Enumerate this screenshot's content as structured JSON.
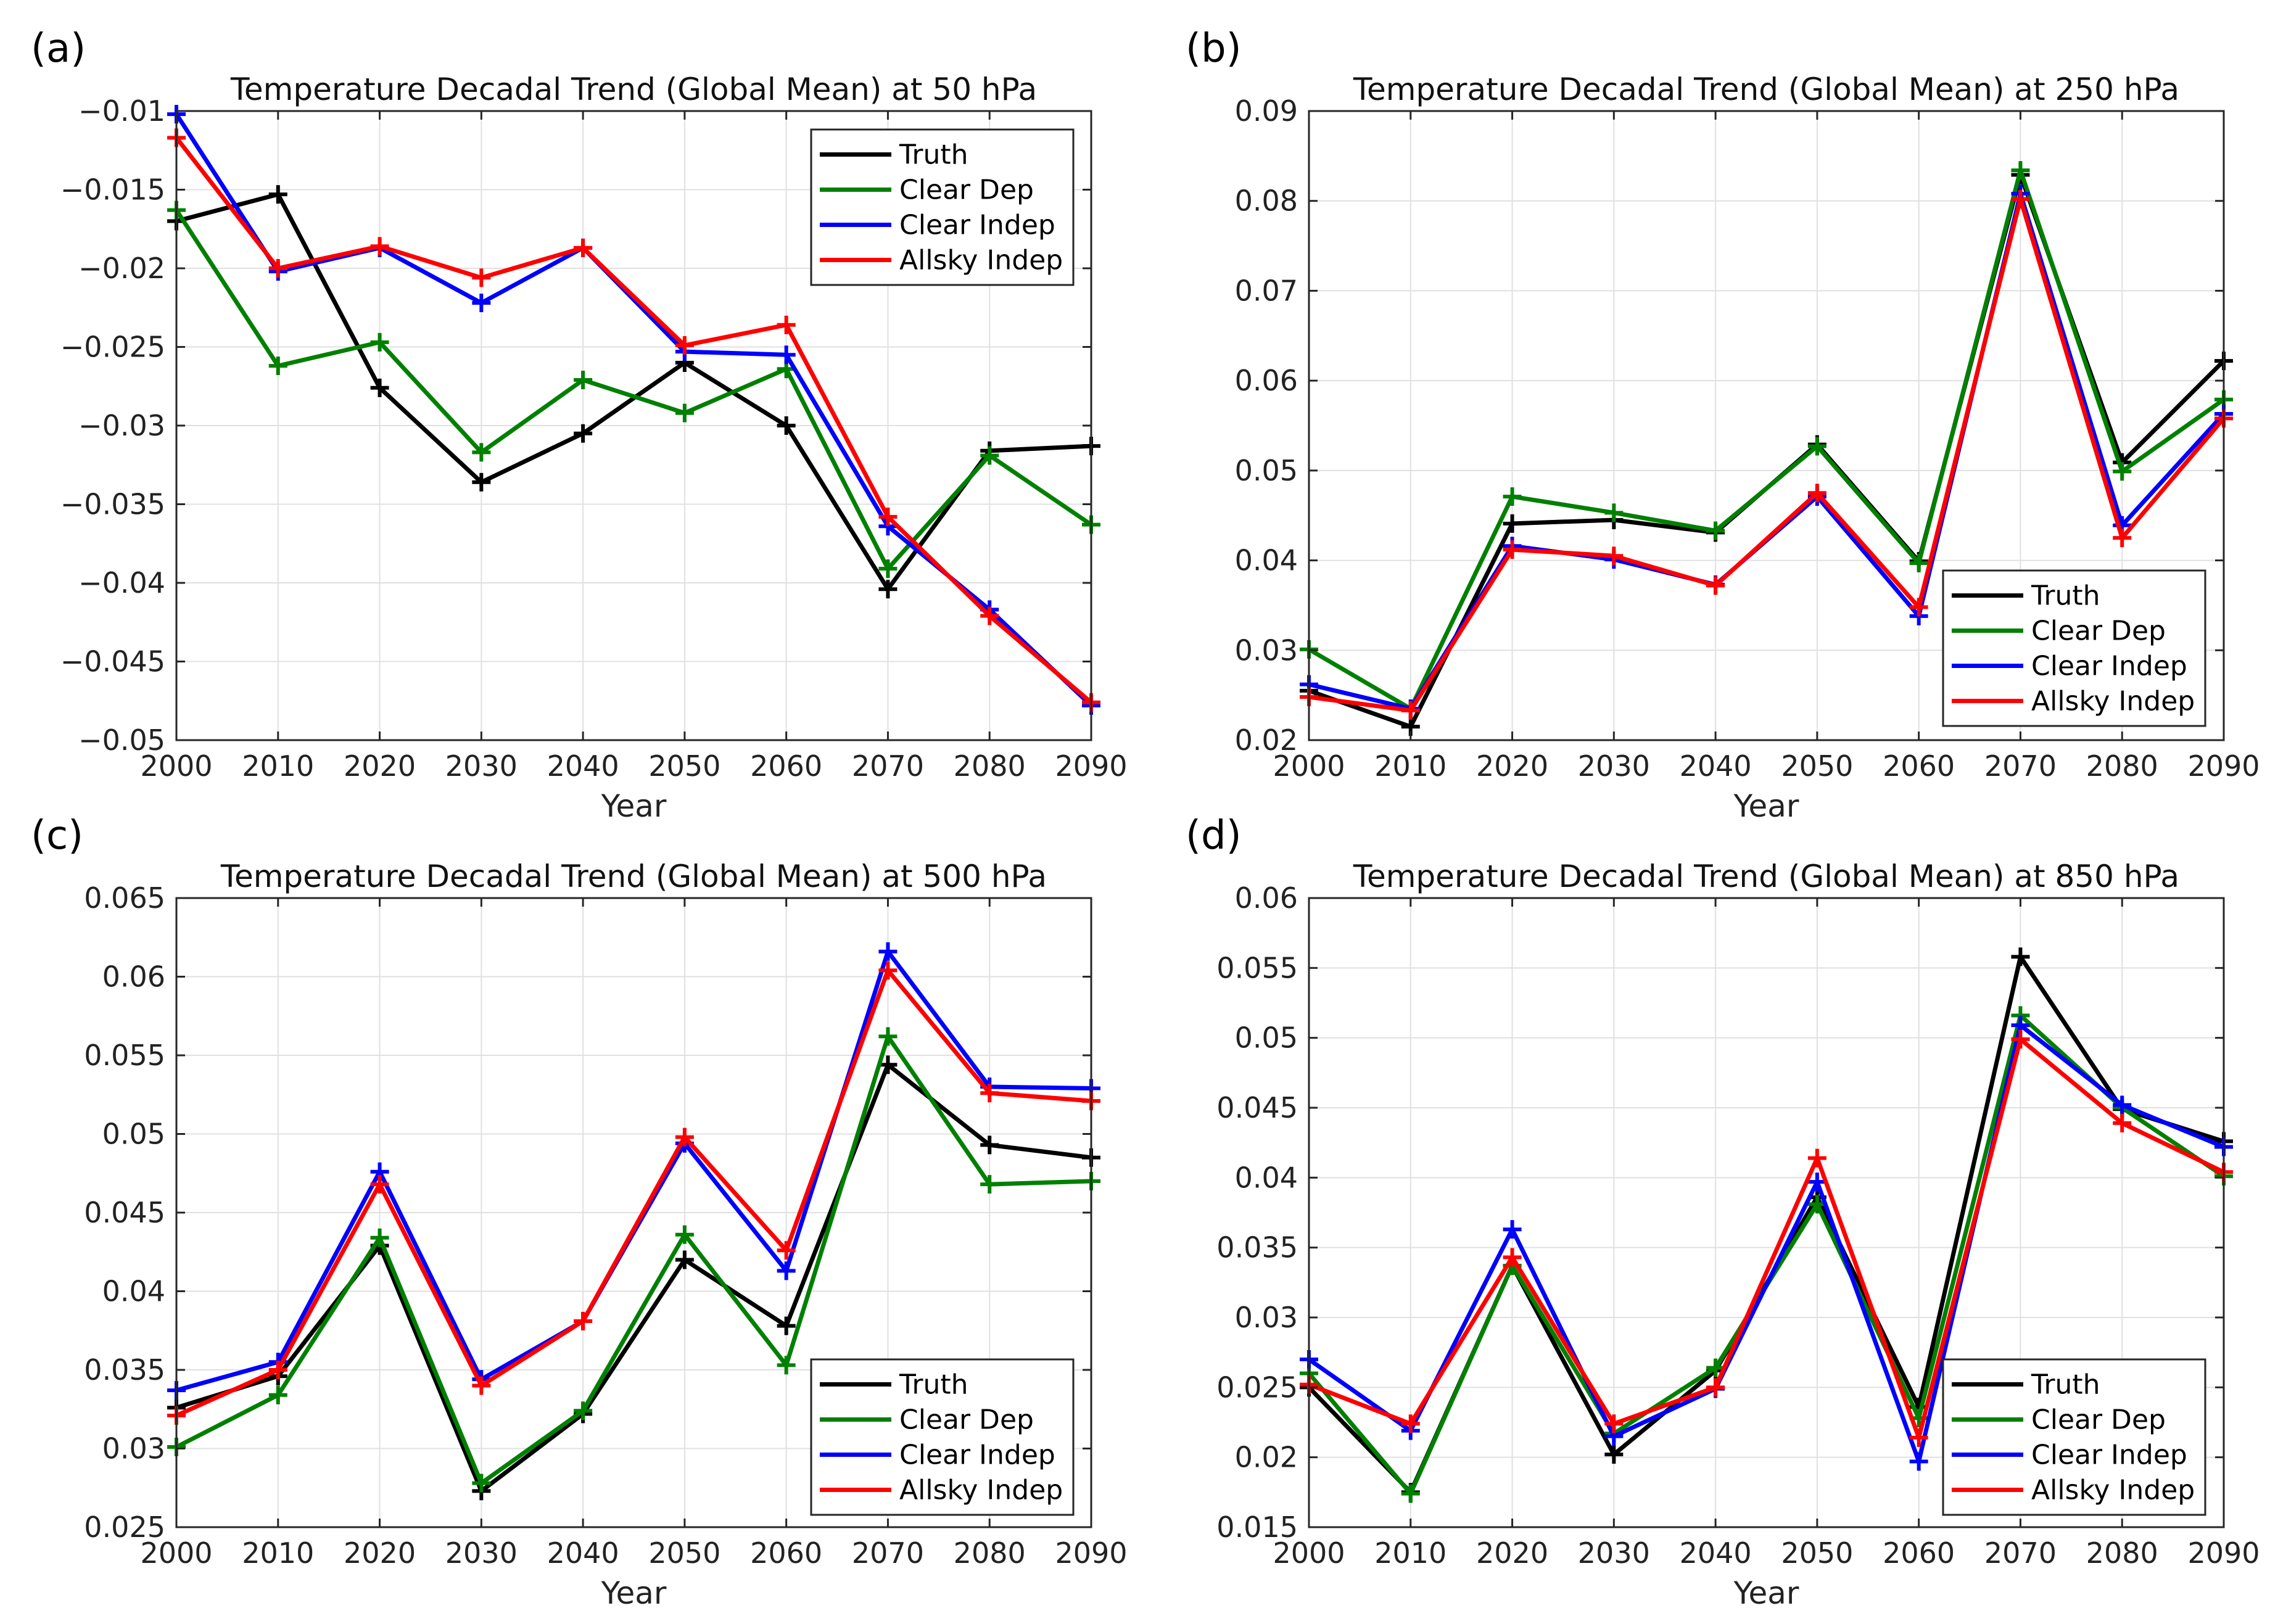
{
  "figure": {
    "background": "#ffffff"
  },
  "colors": {
    "Truth": "#000000",
    "Clear Dep": "#008000",
    "Clear Indep": "#0000ff",
    "Allsky Indep": "#ff0000"
  },
  "chart_data": [
    {
      "type": "line",
      "panel_label": "(a)",
      "title": "Temperature Decadal Trend (Global Mean) at 50 hPa",
      "xlabel": "Year",
      "ylabel": "",
      "x": [
        2000,
        2010,
        2020,
        2030,
        2040,
        2050,
        2060,
        2070,
        2080,
        2090
      ],
      "x_tick_labels": [
        "2000",
        "2010",
        "2020",
        "2030",
        "2040",
        "2050",
        "2060",
        "2070",
        "2080",
        "2090"
      ],
      "ylim": [
        -0.05,
        -0.01
      ],
      "y_ticks": [
        -0.05,
        -0.045,
        -0.04,
        -0.035,
        -0.03,
        -0.025,
        -0.02,
        -0.015,
        -0.01
      ],
      "y_tick_labels": [
        "−0.05",
        "−0.045",
        "−0.04",
        "−0.035",
        "−0.03",
        "−0.025",
        "−0.02",
        "−0.015",
        "−0.01"
      ],
      "grid": true,
      "legend_position": "top-right",
      "series": [
        {
          "name": "Truth",
          "color": "#000000",
          "values": [
            -0.017,
            -0.0153,
            -0.0276,
            -0.0336,
            -0.0305,
            -0.026,
            -0.03,
            -0.0404,
            -0.0316,
            -0.0313
          ]
        },
        {
          "name": "Clear Dep",
          "color": "#008000",
          "values": [
            -0.0163,
            -0.0262,
            -0.0247,
            -0.0317,
            -0.0271,
            -0.0292,
            -0.0264,
            -0.0391,
            -0.0319,
            -0.0363
          ]
        },
        {
          "name": "Clear Indep",
          "color": "#0000ff",
          "values": [
            -0.0102,
            -0.0202,
            -0.0187,
            -0.0222,
            -0.0187,
            -0.0253,
            -0.0255,
            -0.0364,
            -0.0417,
            -0.0478
          ]
        },
        {
          "name": "Allsky Indep",
          "color": "#ff0000",
          "values": [
            -0.0117,
            -0.02,
            -0.0186,
            -0.0206,
            -0.0187,
            -0.0249,
            -0.0236,
            -0.0358,
            -0.0421,
            -0.0476
          ]
        }
      ]
    },
    {
      "type": "line",
      "panel_label": "(b)",
      "title": "Temperature Decadal Trend (Global Mean) at 250 hPa",
      "xlabel": "Year",
      "ylabel": "",
      "x": [
        2000,
        2010,
        2020,
        2030,
        2040,
        2050,
        2060,
        2070,
        2080,
        2090
      ],
      "x_tick_labels": [
        "2000",
        "2010",
        "2020",
        "2030",
        "2040",
        "2050",
        "2060",
        "2070",
        "2080",
        "2090"
      ],
      "ylim": [
        0.02,
        0.09
      ],
      "y_ticks": [
        0.02,
        0.03,
        0.04,
        0.05,
        0.06,
        0.07,
        0.08,
        0.09
      ],
      "y_tick_labels": [
        "0.02",
        "0.03",
        "0.04",
        "0.05",
        "0.06",
        "0.07",
        "0.08",
        "0.09"
      ],
      "grid": true,
      "legend_position": "bottom-right",
      "series": [
        {
          "name": "Truth",
          "color": "#000000",
          "values": [
            0.0255,
            0.0215,
            0.0441,
            0.0445,
            0.0431,
            0.0529,
            0.0399,
            0.0829,
            0.0509,
            0.0622
          ]
        },
        {
          "name": "Clear Dep",
          "color": "#008000",
          "values": [
            0.0301,
            0.0235,
            0.0471,
            0.0453,
            0.0433,
            0.0527,
            0.0397,
            0.0834,
            0.0499,
            0.0579
          ]
        },
        {
          "name": "Clear Indep",
          "color": "#0000ff",
          "values": [
            0.0262,
            0.0235,
            0.0416,
            0.0401,
            0.0373,
            0.0471,
            0.0338,
            0.0808,
            0.0439,
            0.0563
          ]
        },
        {
          "name": "Allsky Indep",
          "color": "#ff0000",
          "values": [
            0.0248,
            0.0233,
            0.0412,
            0.0405,
            0.0372,
            0.0475,
            0.0348,
            0.0802,
            0.0425,
            0.0558
          ]
        }
      ]
    },
    {
      "type": "line",
      "panel_label": "(c)",
      "title": "Temperature Decadal Trend (Global Mean) at 500 hPa",
      "xlabel": "Year",
      "ylabel": "",
      "x": [
        2000,
        2010,
        2020,
        2030,
        2040,
        2050,
        2060,
        2070,
        2080,
        2090
      ],
      "x_tick_labels": [
        "2000",
        "2010",
        "2020",
        "2030",
        "2040",
        "2050",
        "2060",
        "2070",
        "2080",
        "2090"
      ],
      "ylim": [
        0.025,
        0.065
      ],
      "y_ticks": [
        0.025,
        0.03,
        0.035,
        0.04,
        0.045,
        0.05,
        0.055,
        0.06,
        0.065
      ],
      "y_tick_labels": [
        "0.025",
        "0.03",
        "0.035",
        "0.04",
        "0.045",
        "0.05",
        "0.055",
        "0.06",
        "0.065"
      ],
      "grid": true,
      "legend_position": "bottom-right",
      "series": [
        {
          "name": "Truth",
          "color": "#000000",
          "values": [
            0.0326,
            0.0346,
            0.0429,
            0.0273,
            0.0322,
            0.042,
            0.0378,
            0.0544,
            0.0493,
            0.0485
          ]
        },
        {
          "name": "Clear Dep",
          "color": "#008000",
          "values": [
            0.0301,
            0.0334,
            0.0434,
            0.0278,
            0.0324,
            0.0436,
            0.0353,
            0.0562,
            0.0468,
            0.047
          ]
        },
        {
          "name": "Clear Indep",
          "color": "#0000ff",
          "values": [
            0.0337,
            0.0355,
            0.0476,
            0.0344,
            0.0381,
            0.0494,
            0.0413,
            0.0616,
            0.053,
            0.0529
          ]
        },
        {
          "name": "Allsky Indep",
          "color": "#ff0000",
          "values": [
            0.0321,
            0.035,
            0.0468,
            0.034,
            0.0381,
            0.0498,
            0.0426,
            0.0604,
            0.0526,
            0.0521
          ]
        }
      ]
    },
    {
      "type": "line",
      "panel_label": "(d)",
      "title": "Temperature Decadal Trend (Global Mean) at 850 hPa",
      "xlabel": "Year",
      "ylabel": "",
      "x": [
        2000,
        2010,
        2020,
        2030,
        2040,
        2050,
        2060,
        2070,
        2080,
        2090
      ],
      "x_tick_labels": [
        "2000",
        "2010",
        "2020",
        "2030",
        "2040",
        "2050",
        "2060",
        "2070",
        "2080",
        "2090"
      ],
      "ylim": [
        0.015,
        0.06
      ],
      "y_ticks": [
        0.015,
        0.02,
        0.025,
        0.03,
        0.035,
        0.04,
        0.045,
        0.05,
        0.055,
        0.06
      ],
      "y_tick_labels": [
        "0.015",
        "0.02",
        "0.025",
        "0.03",
        "0.035",
        "0.04",
        "0.045",
        "0.05",
        "0.055",
        "0.06"
      ],
      "grid": true,
      "legend_position": "bottom-right",
      "series": [
        {
          "name": "Truth",
          "color": "#000000",
          "values": [
            0.025,
            0.0175,
            0.0337,
            0.0202,
            0.0262,
            0.0386,
            0.0236,
            0.0558,
            0.0449,
            0.0426
          ]
        },
        {
          "name": "Clear Dep",
          "color": "#008000",
          "values": [
            0.026,
            0.0174,
            0.0337,
            0.0217,
            0.0264,
            0.0381,
            0.0228,
            0.0516,
            0.045,
            0.0401
          ]
        },
        {
          "name": "Clear Indep",
          "color": "#0000ff",
          "values": [
            0.027,
            0.0219,
            0.0363,
            0.0215,
            0.0249,
            0.0397,
            0.0197,
            0.0509,
            0.0452,
            0.0422
          ]
        },
        {
          "name": "Allsky Indep",
          "color": "#ff0000",
          "values": [
            0.0252,
            0.0224,
            0.0343,
            0.0224,
            0.025,
            0.0414,
            0.0214,
            0.0499,
            0.0439,
            0.0404
          ]
        }
      ]
    }
  ]
}
